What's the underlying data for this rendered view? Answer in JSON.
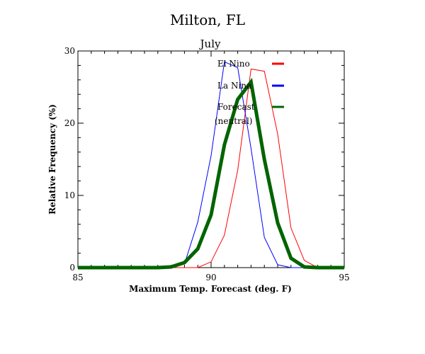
{
  "title": "Milton, FL",
  "chart_data": {
    "type": "line",
    "title": "July",
    "xlabel": "Maximum Temp. Forecast (deg. F)",
    "ylabel": "Relative Frequency (%)",
    "xlim": [
      85,
      95
    ],
    "ylim": [
      0,
      30
    ],
    "xticks": [
      85,
      90,
      95
    ],
    "yticks": [
      0,
      10,
      20,
      30
    ],
    "legend_position": "top-right",
    "series": [
      {
        "name": "El Nino",
        "color": "#ff0000",
        "x": [
          85,
          85.5,
          86,
          86.5,
          87,
          87.5,
          88,
          88.5,
          89,
          89.5,
          90,
          90.5,
          91,
          91.5,
          92,
          92.5,
          93,
          93.5,
          94,
          94.5,
          95
        ],
        "y": [
          0,
          0,
          0,
          0,
          0,
          0,
          0,
          0,
          0,
          0,
          0.8,
          4.5,
          13.5,
          27.5,
          27.2,
          18.5,
          5.5,
          1,
          0,
          0,
          0
        ]
      },
      {
        "name": "La Nina",
        "color": "#0000ff",
        "x": [
          85,
          85.5,
          86,
          86.5,
          87,
          87.5,
          88,
          88.5,
          89,
          89.5,
          90,
          90.5,
          91,
          91.5,
          92,
          92.5,
          93,
          93.5,
          94,
          94.5,
          95
        ],
        "y": [
          0,
          0,
          0,
          0,
          0,
          0,
          0,
          0,
          0.5,
          6.3,
          15.5,
          28.5,
          27.7,
          16.5,
          4.2,
          0.4,
          0,
          0,
          0,
          0,
          0
        ]
      },
      {
        "name": "Forecast (neutral)",
        "color": "#006400",
        "x": [
          85,
          85.5,
          86,
          86.5,
          87,
          87.5,
          88,
          88.5,
          89,
          89.5,
          90,
          90.5,
          91,
          91.5,
          92,
          92.5,
          93,
          93.5,
          94,
          94.5,
          95
        ],
        "y": [
          0,
          0,
          0,
          0,
          0,
          0,
          0,
          0.1,
          0.7,
          2.6,
          7.3,
          17.0,
          23.3,
          25.7,
          15.0,
          6.2,
          1.3,
          0.1,
          0,
          0,
          0
        ]
      }
    ],
    "legend": [
      {
        "label": "El Nino",
        "color": "#ff0000"
      },
      {
        "label": "La Nina",
        "color": "#0000ff"
      },
      {
        "label": "Forecast",
        "label2": "(neutral)",
        "color": "#006400"
      }
    ]
  }
}
